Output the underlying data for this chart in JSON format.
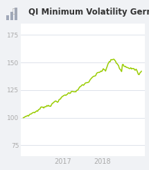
{
  "title": "QI Minimum Volatility Germany",
  "background_color": "#f0f2f5",
  "plot_bg_color": "#ffffff",
  "line_color": "#99cc00",
  "yticks": [
    75,
    100,
    125,
    150,
    175
  ],
  "xtick_labels": [
    "2017",
    "2018"
  ],
  "ylim": [
    65,
    185
  ],
  "xlim": [
    -3,
    159
  ],
  "title_fontsize": 8.5,
  "tick_fontsize": 6.5,
  "tick_color": "#aaaaaa",
  "grid_color": "#d8dde6",
  "icon_color": "#aaaaaa",
  "line_width": 1.1,
  "xtick_positions": [
    52,
    104
  ]
}
